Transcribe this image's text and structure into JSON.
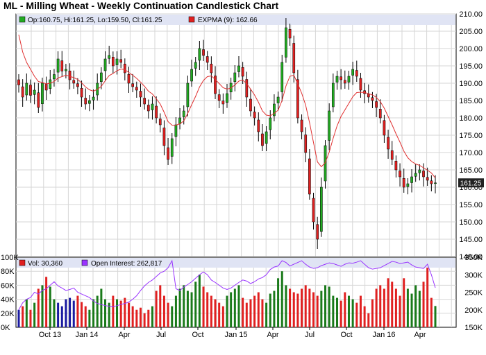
{
  "title": "ML - Milling Wheat - Weekly Continuation Candlestick Chart",
  "colors": {
    "up": "#22aa22",
    "down": "#e02020",
    "ma_line": "#e03030",
    "vol_up": "#1a7a1a",
    "vol_down": "#e02020",
    "vol_neutral": "#1a1aa0",
    "oi_line": "#9933ff",
    "legend_bg": "#e0e4f4",
    "grid": "#d6d6d6",
    "price_tag_bg": "#222222"
  },
  "price_panel": {
    "legend_ohlc": "Op:160.75, Hi:161.25, Lo:159.50, Cl:161.25",
    "legend_ma": "EXPMA (9): 162.66",
    "y_ticks": [
      "210.00",
      "205.00",
      "200.00",
      "195.00",
      "190.00",
      "185.00",
      "180.00",
      "175.00",
      "170.00",
      "165.00",
      "160.00",
      "155.00",
      "150.00",
      "145.00",
      "140.00"
    ],
    "last_price": "161.25"
  },
  "volume_panel": {
    "legend_vol": "Vol: 30,360",
    "legend_oi": "Open Interest: 262,817",
    "y_ticks_left": [
      "100K",
      "80K",
      "60K",
      "40K",
      "20K",
      "0K"
    ],
    "y_ticks_right": [
      "350K",
      "300K",
      "250K",
      "200K",
      "150K"
    ]
  },
  "x_labels": [
    "Oct 13",
    "Jan 14",
    "Apr",
    "Jul",
    "Oct",
    "Jan 15",
    "Apr",
    "Jul",
    "Oct",
    "Jan 16",
    "Apr"
  ],
  "chart_data": {
    "type": "candlestick",
    "title": "ML - Milling Wheat - Weekly Continuation Candlestick Chart",
    "x_range": [
      "2013-08",
      "2016-04"
    ],
    "ylim_price": [
      140,
      210
    ],
    "ylim_volume": [
      0,
      100000
    ],
    "ylim_open_interest": [
      150000,
      350000
    ],
    "grid": true,
    "last": {
      "open": 160.75,
      "high": 161.25,
      "low": 159.5,
      "close": 161.25,
      "expma_9": 162.66,
      "volume": 30360,
      "open_interest": 262817
    },
    "close_series": [
      189.5,
      186,
      190,
      186.5,
      188,
      183,
      190,
      188,
      191,
      192.5,
      197,
      193.5,
      194,
      191,
      190,
      189,
      186,
      184,
      185,
      186,
      190,
      193,
      197,
      198,
      195,
      197,
      196,
      193,
      190,
      189,
      188,
      186,
      184,
      182,
      184,
      180,
      178,
      172,
      168,
      174,
      178,
      180,
      182,
      190,
      194,
      196,
      200,
      198,
      196,
      193,
      187,
      185,
      184,
      187,
      190,
      193,
      195,
      192,
      186,
      182,
      180,
      176,
      172,
      176,
      180,
      184,
      186,
      196,
      206,
      203,
      193,
      180,
      176,
      170,
      158,
      150,
      145,
      160,
      172,
      182,
      190,
      192,
      191,
      190,
      192,
      194,
      192,
      188,
      187,
      186,
      185,
      183,
      180,
      175,
      171,
      168,
      165,
      163,
      160,
      161,
      163,
      164,
      165,
      163,
      162,
      161,
      161.25
    ],
    "ma_series": [
      204,
      199,
      196,
      194,
      192,
      190.5,
      190.2,
      189.8,
      190,
      190.5,
      191.5,
      191.9,
      192.3,
      192,
      191.6,
      191.1,
      190.1,
      188.9,
      188.1,
      187.7,
      188.2,
      189.1,
      190.7,
      192.2,
      192.8,
      193.6,
      194.1,
      193.9,
      193.1,
      192.3,
      191.4,
      190.3,
      189.1,
      187.7,
      186.9,
      185.5,
      184,
      181.6,
      178.9,
      177.9,
      177.9,
      178.3,
      179.1,
      181.3,
      183.8,
      186.2,
      188.9,
      190.8,
      191.9,
      192.1,
      191.1,
      189.9,
      188.7,
      188.3,
      188.6,
      189.5,
      190.6,
      190.9,
      189.9,
      188.3,
      186.6,
      184.5,
      182,
      180.8,
      180.6,
      181.3,
      182.2,
      185,
      189.2,
      192,
      192.3,
      189.8,
      187.1,
      183.7,
      178.6,
      172.9,
      167.3,
      165.9,
      167.1,
      170.1,
      174.1,
      177.7,
      180.4,
      182.3,
      184.2,
      186.1,
      187.3,
      187.4,
      187.3,
      187,
      186.6,
      185.9,
      184.7,
      182.8,
      180.4,
      178,
      175.4,
      173,
      170.4,
      168.5,
      167.4,
      166.7,
      166.3,
      165.6,
      164.9,
      164.1,
      162.66
    ],
    "volume_series": [
      25000,
      30000,
      40000,
      25000,
      35000,
      55000,
      60000,
      72000,
      58000,
      40000,
      35000,
      30000,
      40000,
      42000,
      38000,
      45000,
      36000,
      30000,
      25000,
      40000,
      45000,
      55000,
      40000,
      35000,
      45000,
      40000,
      38000,
      42000,
      35000,
      30000,
      25000,
      28000,
      20000,
      25000,
      30000,
      52000,
      60000,
      45000,
      35000,
      30000,
      45000,
      55000,
      60000,
      52000,
      50000,
      65000,
      75000,
      58000,
      50000,
      45000,
      40000,
      35000,
      30000,
      45000,
      50000,
      55000,
      60000,
      42000,
      35000,
      40000,
      45000,
      50000,
      40000,
      35000,
      48000,
      52000,
      70000,
      80000,
      60000,
      55000,
      50000,
      48000,
      55000,
      60000,
      55000,
      50000,
      45000,
      52000,
      60000,
      58000,
      45000,
      42000,
      38000,
      50000,
      45000,
      40000,
      35000,
      45000,
      30000,
      20000,
      40000,
      55000,
      60000,
      55000,
      70000,
      65000,
      55000,
      45000,
      70000,
      55000,
      48000,
      60000,
      52000,
      65000,
      85000,
      42000,
      30360
    ],
    "open_interest_series": [
      200000,
      220000,
      230000,
      235000,
      250000,
      245000,
      255000,
      260000,
      270000,
      280000,
      268000,
      262000,
      255000,
      258000,
      262000,
      250000,
      245000,
      240000,
      235000,
      225000,
      218000,
      215000,
      212000,
      210000,
      208000,
      212000,
      215000,
      218000,
      222000,
      230000,
      240000,
      255000,
      268000,
      278000,
      285000,
      295000,
      305000,
      310000,
      320000,
      340000,
      260000,
      255000,
      265000,
      272000,
      280000,
      290000,
      300000,
      308000,
      300000,
      285000,
      278000,
      270000,
      262000,
      258000,
      262000,
      270000,
      278000,
      285000,
      282000,
      275000,
      280000,
      288000,
      292000,
      300000,
      315000,
      322000,
      325000,
      340000,
      335000,
      325000,
      330000,
      335000,
      340000,
      330000,
      322000,
      318000,
      320000,
      326000,
      330000,
      334000,
      332000,
      328000,
      324000,
      330000,
      334000,
      333000,
      336000,
      340000,
      330000,
      320000,
      316000,
      318000,
      320000,
      326000,
      332000,
      338000,
      336000,
      332000,
      334000,
      336000,
      328000,
      322000,
      320000,
      318000,
      330000,
      300000,
      262817
    ]
  }
}
